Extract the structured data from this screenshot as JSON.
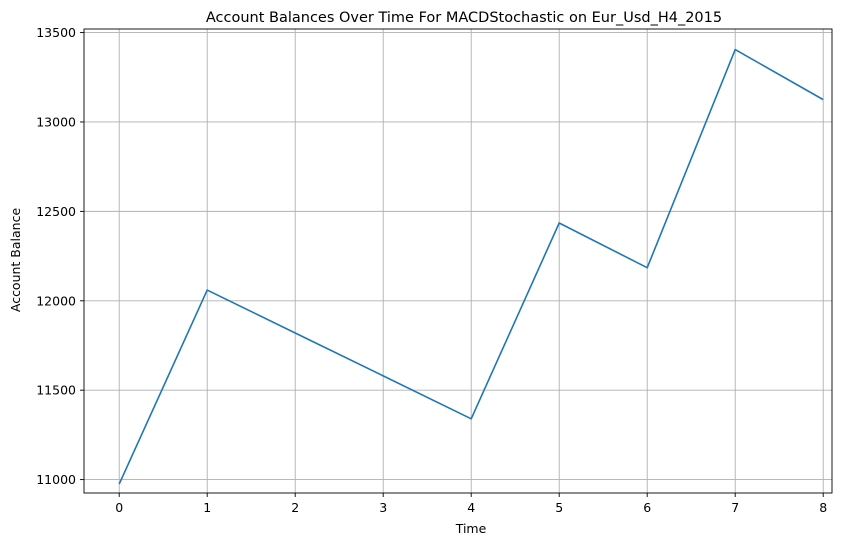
{
  "chart_data": {
    "type": "line",
    "title": "Account Balances Over Time For MACDStochastic on Eur_Usd_H4_2015",
    "xlabel": "Time",
    "ylabel": "Account Balance",
    "x": [
      0,
      1,
      2,
      3,
      4,
      5,
      6,
      7,
      8
    ],
    "series": [
      {
        "values": [
          10975,
          12060,
          11820,
          11580,
          11340,
          12435,
          12185,
          13405,
          13125
        ]
      }
    ],
    "xticks": [
      "0",
      "1",
      "2",
      "3",
      "4",
      "5",
      "6",
      "7",
      "8"
    ],
    "yticks": [
      "11000",
      "11500",
      "12000",
      "12500",
      "13000",
      "13500"
    ],
    "xlim": [
      -0.4,
      8.1
    ],
    "ylim": [
      10925,
      13520
    ],
    "grid": true,
    "line_color": "#1f77b4"
  }
}
